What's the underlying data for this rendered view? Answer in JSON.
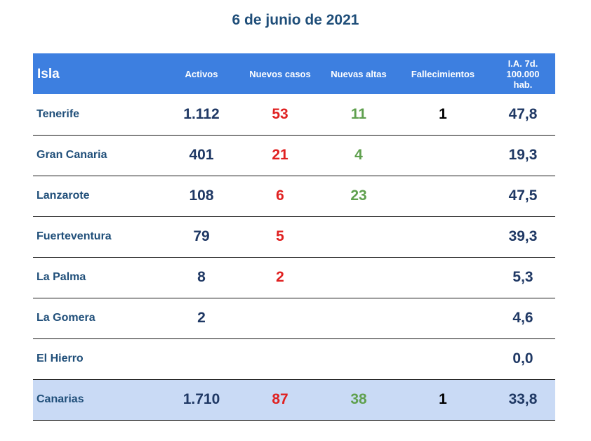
{
  "title": "6 de junio de 2021",
  "headers": {
    "isla": "Isla",
    "activos": "Activos",
    "nuevos_casos": "Nuevos casos",
    "nuevas_altas": "Nuevas altas",
    "fallecimientos": "Fallecimientos",
    "ia_line1": "I.A. 7d.",
    "ia_line2": "100.000",
    "ia_line3": "hab."
  },
  "rows": [
    {
      "isla": "Tenerife",
      "activos": "1.112",
      "nuevos_casos": "53",
      "nuevas_altas": "11",
      "fallecimientos": "1",
      "ia": "47,8"
    },
    {
      "isla": "Gran Canaria",
      "activos": "401",
      "nuevos_casos": "21",
      "nuevas_altas": "4",
      "fallecimientos": "",
      "ia": "19,3"
    },
    {
      "isla": "Lanzarote",
      "activos": "108",
      "nuevos_casos": "6",
      "nuevas_altas": "23",
      "fallecimientos": "",
      "ia": "47,5"
    },
    {
      "isla": "Fuerteventura",
      "activos": "79",
      "nuevos_casos": "5",
      "nuevas_altas": "",
      "fallecimientos": "",
      "ia": "39,3"
    },
    {
      "isla": "La Palma",
      "activos": "8",
      "nuevos_casos": "2",
      "nuevas_altas": "",
      "fallecimientos": "",
      "ia": "5,3"
    },
    {
      "isla": "La Gomera",
      "activos": "2",
      "nuevos_casos": "",
      "nuevas_altas": "",
      "fallecimientos": "",
      "ia": "4,6"
    },
    {
      "isla": "El Hierro",
      "activos": "",
      "nuevos_casos": "",
      "nuevas_altas": "",
      "fallecimientos": "",
      "ia": "0,0"
    },
    {
      "isla": "Canarias",
      "activos": "1.710",
      "nuevos_casos": "87",
      "nuevas_altas": "38",
      "fallecimientos": "1",
      "ia": "33,8"
    }
  ],
  "colors": {
    "header_bg": "#3d7fe0",
    "total_bg": "#c9daf5",
    "title": "#1f4e79",
    "nuevos_casos": "#e02020",
    "nuevas_altas": "#5fa04e"
  }
}
